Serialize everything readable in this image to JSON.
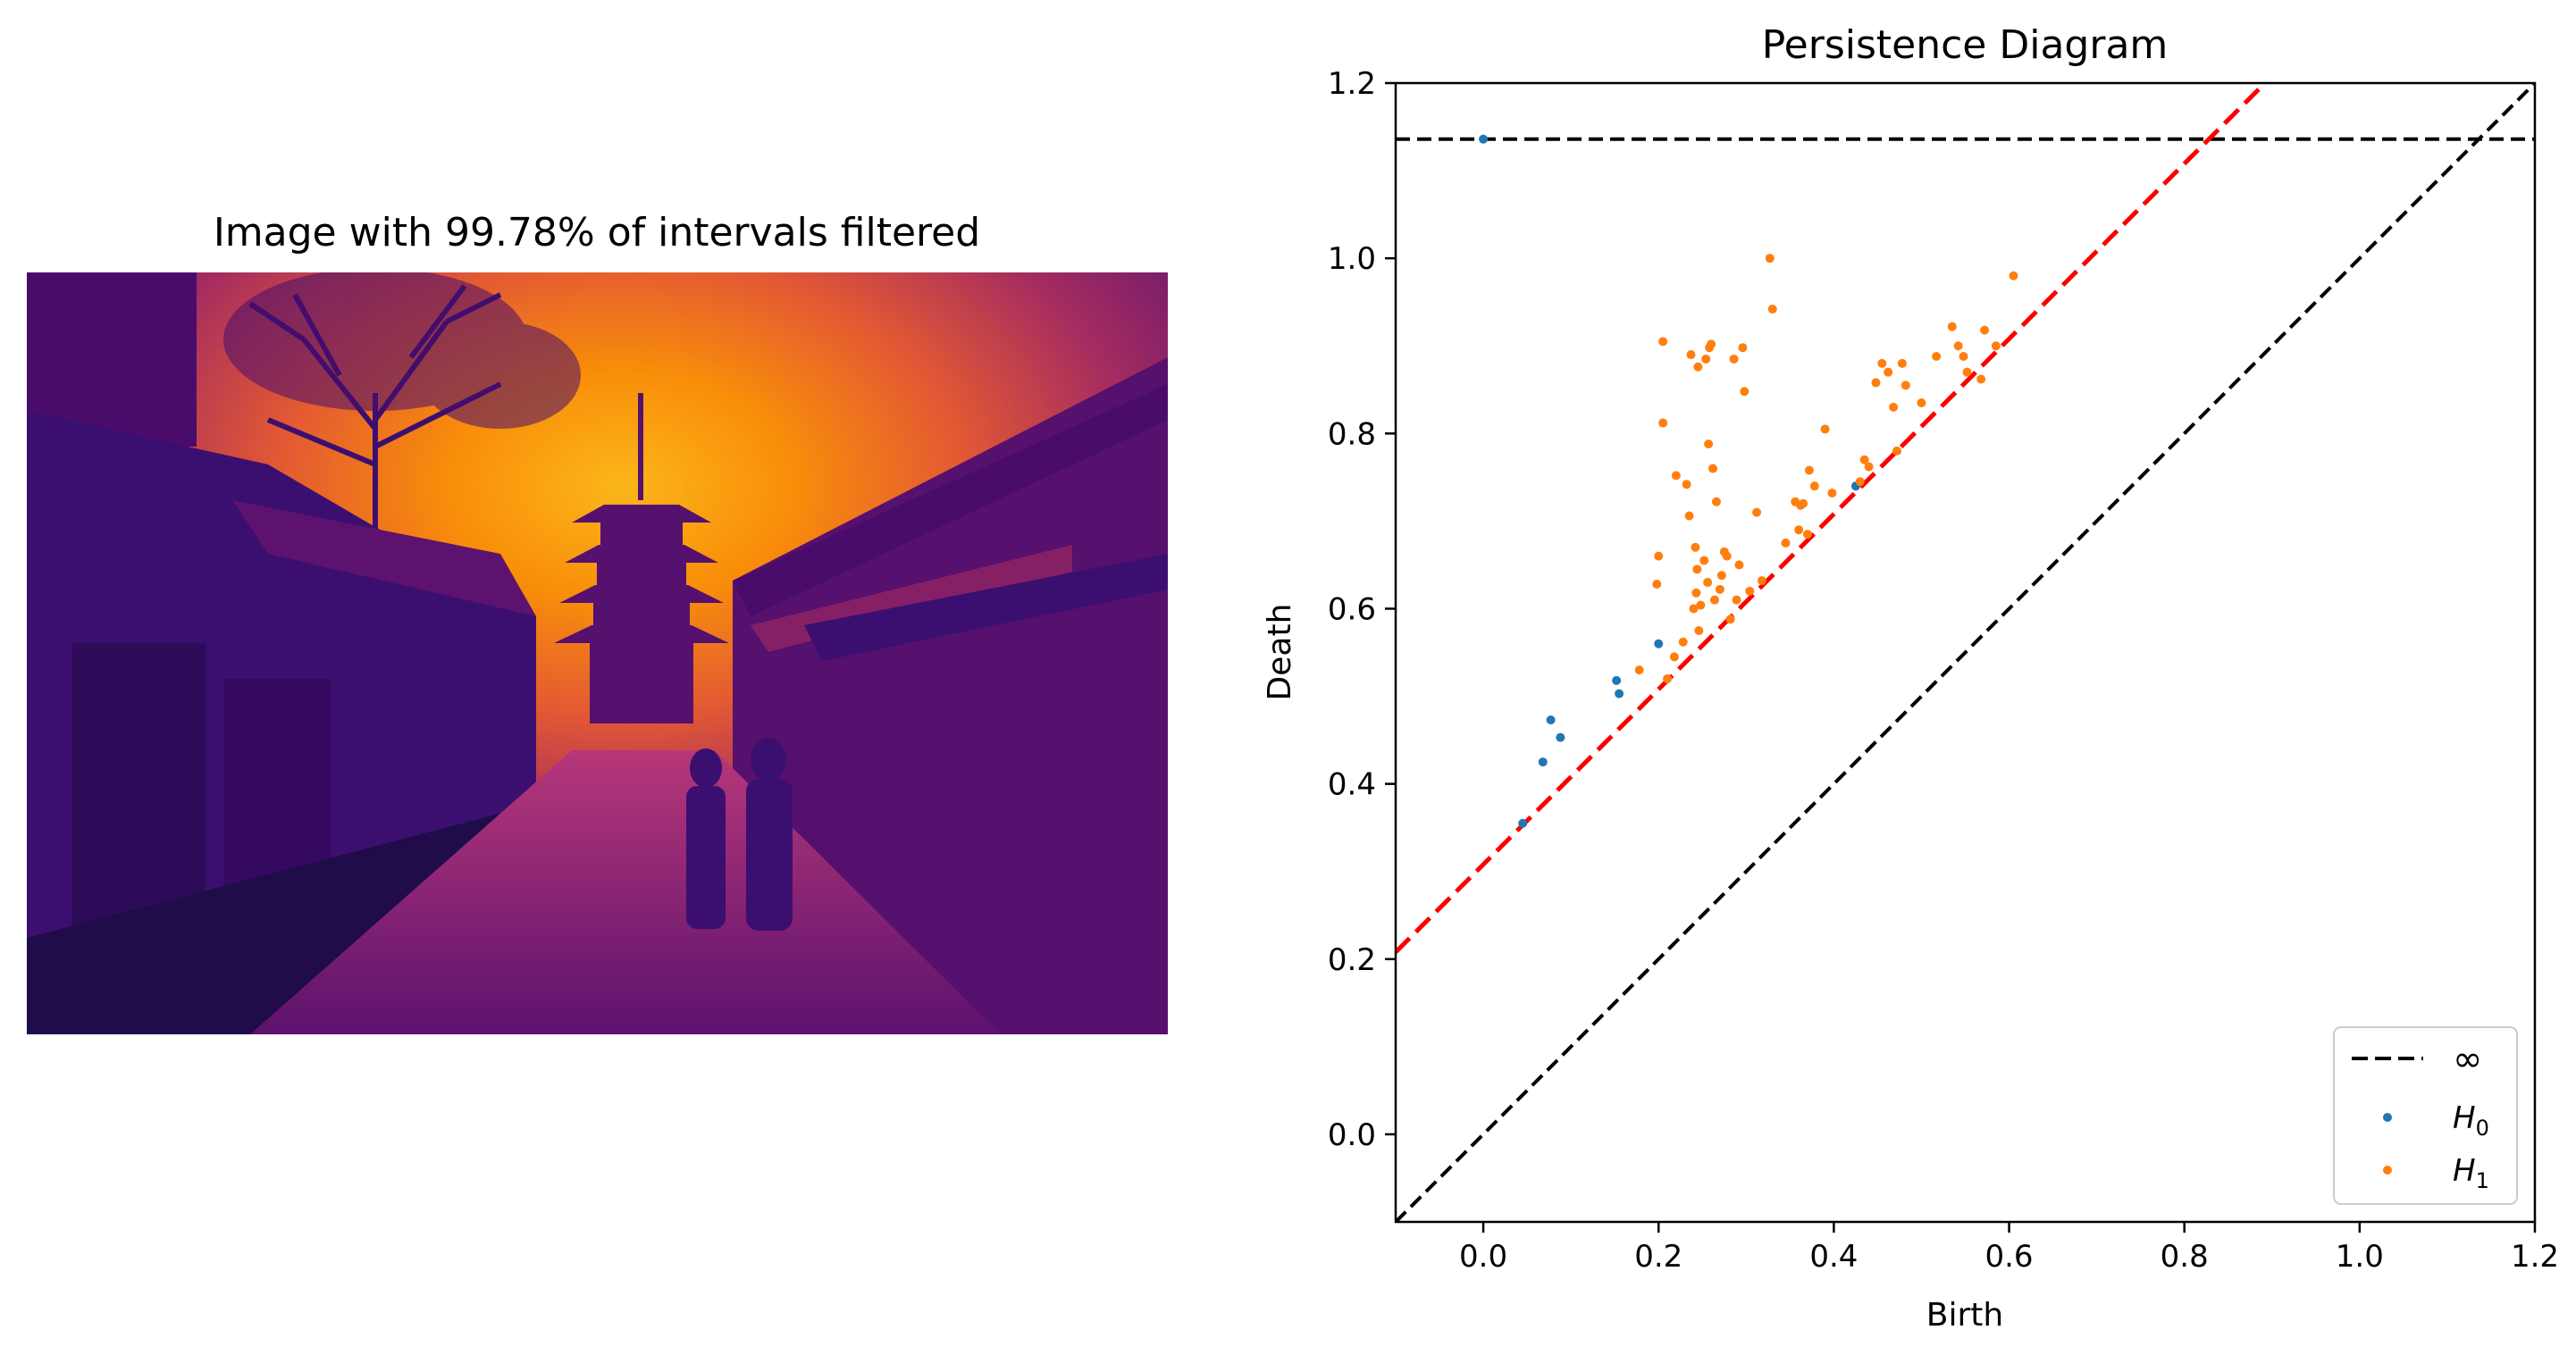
{
  "image_panel": {
    "title": "Image with 99.78% of intervals filtered",
    "colormap": [
      "#000004",
      "#1b0c41",
      "#4a0c6b",
      "#781c6d",
      "#a52c60",
      "#cf4446",
      "#ed6925",
      "#fb9b06",
      "#f7d13d",
      "#fcffa4"
    ]
  },
  "chart_data": {
    "type": "scatter",
    "title": "Persistence Diagram",
    "xlabel": "Birth",
    "ylabel": "Death",
    "xlim": [
      -0.1,
      1.2
    ],
    "ylim": [
      -0.1,
      1.2
    ],
    "xticks": [
      "0.0",
      "0.2",
      "0.4",
      "0.6",
      "0.8",
      "1.0",
      "1.2"
    ],
    "xtick_values": [
      0.0,
      0.2,
      0.4,
      0.6,
      0.8,
      1.0,
      1.2
    ],
    "yticks": [
      "0.0",
      "0.2",
      "0.4",
      "0.6",
      "0.8",
      "1.0",
      "1.2"
    ],
    "ytick_values": [
      0.0,
      0.2,
      0.4,
      0.6,
      0.8,
      1.0,
      1.2
    ],
    "grid": false,
    "legend_position": "lower-right",
    "infinity_line": {
      "label": "∞",
      "y": 1.136,
      "color": "#000000",
      "style": "dashed"
    },
    "diagonal": {
      "color": "#000000",
      "style": "dashed"
    },
    "threshold_line": {
      "color": "#ff0000",
      "style": "dashed",
      "intercept": 0.308,
      "slope": 1.0
    },
    "series": [
      {
        "name": "H0",
        "label_main": "H",
        "label_sub": "0",
        "color": "#1f77b4",
        "points": [
          [
            0.0,
            1.136
          ],
          [
            0.045,
            0.355
          ],
          [
            0.068,
            0.425
          ],
          [
            0.077,
            0.473
          ],
          [
            0.088,
            0.453
          ],
          [
            0.152,
            0.518
          ],
          [
            0.155,
            0.503
          ],
          [
            0.2,
            0.56
          ],
          [
            0.425,
            0.74
          ]
        ]
      },
      {
        "name": "H1",
        "label_main": "H",
        "label_sub": "1",
        "color": "#ff7f0e",
        "points": [
          [
            0.205,
            0.905
          ],
          [
            0.205,
            0.812
          ],
          [
            0.2,
            0.66
          ],
          [
            0.198,
            0.628
          ],
          [
            0.178,
            0.53
          ],
          [
            0.21,
            0.52
          ],
          [
            0.218,
            0.545
          ],
          [
            0.22,
            0.752
          ],
          [
            0.228,
            0.562
          ],
          [
            0.232,
            0.742
          ],
          [
            0.235,
            0.706
          ],
          [
            0.237,
            0.89
          ],
          [
            0.24,
            0.6
          ],
          [
            0.242,
            0.67
          ],
          [
            0.243,
            0.618
          ],
          [
            0.244,
            0.645
          ],
          [
            0.245,
            0.876
          ],
          [
            0.246,
            0.575
          ],
          [
            0.248,
            0.604
          ],
          [
            0.252,
            0.655
          ],
          [
            0.254,
            0.885
          ],
          [
            0.256,
            0.63
          ],
          [
            0.257,
            0.788
          ],
          [
            0.258,
            0.898
          ],
          [
            0.26,
            0.902
          ],
          [
            0.262,
            0.76
          ],
          [
            0.264,
            0.61
          ],
          [
            0.266,
            0.722
          ],
          [
            0.27,
            0.622
          ],
          [
            0.272,
            0.638
          ],
          [
            0.275,
            0.665
          ],
          [
            0.278,
            0.66
          ],
          [
            0.282,
            0.588
          ],
          [
            0.286,
            0.885
          ],
          [
            0.289,
            0.61
          ],
          [
            0.292,
            0.65
          ],
          [
            0.296,
            0.898
          ],
          [
            0.298,
            0.848
          ],
          [
            0.304,
            0.62
          ],
          [
            0.312,
            0.71
          ],
          [
            0.318,
            0.632
          ],
          [
            0.327,
            1.0
          ],
          [
            0.33,
            0.942
          ],
          [
            0.345,
            0.675
          ],
          [
            0.356,
            0.722
          ],
          [
            0.36,
            0.69
          ],
          [
            0.362,
            0.718
          ],
          [
            0.365,
            0.72
          ],
          [
            0.37,
            0.685
          ],
          [
            0.372,
            0.758
          ],
          [
            0.378,
            0.74
          ],
          [
            0.39,
            0.805
          ],
          [
            0.398,
            0.732
          ],
          [
            0.43,
            0.745
          ],
          [
            0.435,
            0.77
          ],
          [
            0.44,
            0.762
          ],
          [
            0.448,
            0.858
          ],
          [
            0.455,
            0.88
          ],
          [
            0.462,
            0.87
          ],
          [
            0.468,
            0.83
          ],
          [
            0.472,
            0.78
          ],
          [
            0.478,
            0.88
          ],
          [
            0.482,
            0.855
          ],
          [
            0.5,
            0.835
          ],
          [
            0.517,
            0.888
          ],
          [
            0.535,
            0.922
          ],
          [
            0.542,
            0.9
          ],
          [
            0.548,
            0.888
          ],
          [
            0.552,
            0.87
          ],
          [
            0.568,
            0.862
          ],
          [
            0.572,
            0.918
          ],
          [
            0.585,
            0.9
          ],
          [
            0.605,
            0.98
          ]
        ]
      }
    ]
  }
}
